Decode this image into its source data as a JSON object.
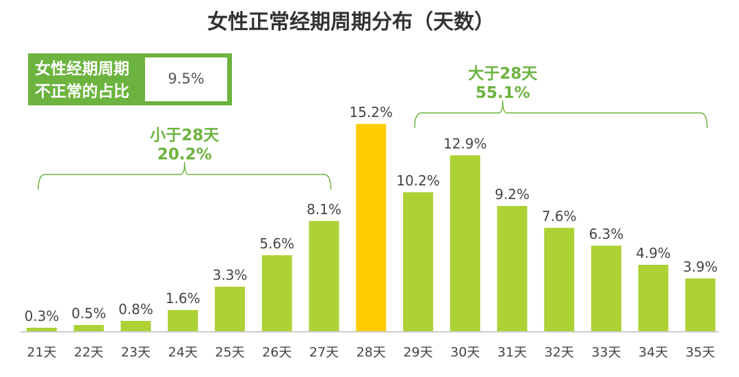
{
  "chart_data": {
    "type": "bar",
    "title": "女性正常经期周期分布（天数）",
    "categories": [
      "21天",
      "22天",
      "23天",
      "24天",
      "25天",
      "26天",
      "27天",
      "28天",
      "29天",
      "30天",
      "31天",
      "32天",
      "33天",
      "34天",
      "35天"
    ],
    "values": [
      0.3,
      0.5,
      0.8,
      1.6,
      3.3,
      5.6,
      8.1,
      15.2,
      10.2,
      12.9,
      9.2,
      7.6,
      6.3,
      4.9,
      3.9
    ],
    "value_labels": [
      "0.3%",
      "0.5%",
      "0.8%",
      "1.6%",
      "3.3%",
      "5.6%",
      "8.1%",
      "15.2%",
      "10.2%",
      "12.9%",
      "9.2%",
      "7.6%",
      "6.3%",
      "4.9%",
      "3.9%"
    ],
    "highlight_category": "28天",
    "ylim": [
      0,
      16
    ],
    "grid": false,
    "colors": {
      "bar": "#aed136",
      "highlight": "#ffcc00",
      "accent": "#6db33f",
      "baseline": "#cccccc"
    },
    "groups": [
      {
        "label": "小于28天",
        "value": "20.2%",
        "from": "21天",
        "to": "27天"
      },
      {
        "label": "大于28天",
        "value": "55.1%",
        "from": "29天",
        "to": "35天"
      }
    ],
    "info_box": {
      "line1": "女性经期周期",
      "line2": "不正常的占比",
      "value": "9.5%"
    }
  }
}
